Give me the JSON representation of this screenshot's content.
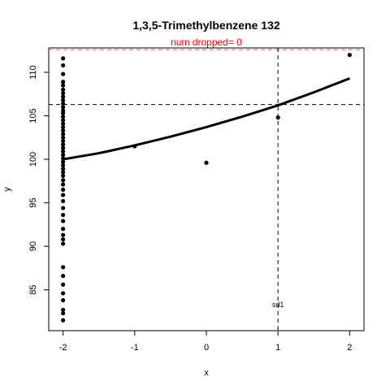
{
  "chart_data": {
    "type": "scatter",
    "title": "1,3,5-Trimethylbenzene 132",
    "subtitle": "num dropped= 0",
    "xlabel": "x",
    "ylabel": "y",
    "xlim": [
      -2.2,
      2.2
    ],
    "ylim": [
      80.3,
      112.8
    ],
    "x_ticks": [
      -2,
      -1,
      0,
      1,
      2
    ],
    "y_ticks": [
      85,
      90,
      95,
      100,
      105,
      110
    ],
    "grid": false,
    "points": [
      {
        "x": -2,
        "y": 111.6
      },
      {
        "x": -2,
        "y": 110.8
      },
      {
        "x": -2,
        "y": 109.8
      },
      {
        "x": -2,
        "y": 108.9
      },
      {
        "x": -2,
        "y": 108.5
      },
      {
        "x": -2,
        "y": 108.0
      },
      {
        "x": -2,
        "y": 107.6
      },
      {
        "x": -2,
        "y": 107.2
      },
      {
        "x": -2,
        "y": 106.8
      },
      {
        "x": -2,
        "y": 106.4
      },
      {
        "x": -2,
        "y": 106.0
      },
      {
        "x": -2,
        "y": 105.6
      },
      {
        "x": -2,
        "y": 105.3
      },
      {
        "x": -2,
        "y": 104.9
      },
      {
        "x": -2,
        "y": 104.5
      },
      {
        "x": -2,
        "y": 104.1
      },
      {
        "x": -2,
        "y": 103.7
      },
      {
        "x": -2,
        "y": 103.3
      },
      {
        "x": -2,
        "y": 102.9
      },
      {
        "x": -2,
        "y": 102.5
      },
      {
        "x": -2,
        "y": 102.1
      },
      {
        "x": -2,
        "y": 101.7
      },
      {
        "x": -2,
        "y": 101.3
      },
      {
        "x": -2,
        "y": 100.9
      },
      {
        "x": -2,
        "y": 100.5
      },
      {
        "x": -2,
        "y": 100.1
      },
      {
        "x": -2,
        "y": 99.7
      },
      {
        "x": -2,
        "y": 99.3
      },
      {
        "x": -2,
        "y": 98.9
      },
      {
        "x": -2,
        "y": 98.5
      },
      {
        "x": -2,
        "y": 98.1
      },
      {
        "x": -2,
        "y": 97.6
      },
      {
        "x": -2,
        "y": 97.1
      },
      {
        "x": -2,
        "y": 96.5
      },
      {
        "x": -2,
        "y": 95.9
      },
      {
        "x": -2,
        "y": 95.2
      },
      {
        "x": -2,
        "y": 94.4
      },
      {
        "x": -2,
        "y": 93.6
      },
      {
        "x": -2,
        "y": 92.9
      },
      {
        "x": -2,
        "y": 92.0
      },
      {
        "x": -2,
        "y": 91.3
      },
      {
        "x": -2,
        "y": 90.8
      },
      {
        "x": -2,
        "y": 90.3
      },
      {
        "x": -2,
        "y": 87.6
      },
      {
        "x": -2,
        "y": 86.6
      },
      {
        "x": -2,
        "y": 85.6
      },
      {
        "x": -2,
        "y": 84.6
      },
      {
        "x": -2,
        "y": 83.8
      },
      {
        "x": -2,
        "y": 82.7
      },
      {
        "x": -2,
        "y": 82.3
      },
      {
        "x": -2,
        "y": 81.5
      },
      {
        "x": -1,
        "y": 101.5
      },
      {
        "x": 0,
        "y": 99.6
      },
      {
        "x": 1,
        "y": 104.8
      },
      {
        "x": 2,
        "y": 112.0
      }
    ],
    "fit_line": {
      "x": [
        -2,
        -1.5,
        -1,
        -0.5,
        0,
        0.5,
        1,
        1.5,
        2
      ],
      "y": [
        100.0,
        100.7,
        101.6,
        102.6,
        103.7,
        104.9,
        106.2,
        107.7,
        109.3
      ]
    },
    "reference_lines": {
      "horizontal_dashed": [
        106.3,
        112.6
      ],
      "vertical_dashed": [
        1
      ]
    },
    "annotation": {
      "text": "sd1",
      "x": 1,
      "y": 83.0
    }
  }
}
